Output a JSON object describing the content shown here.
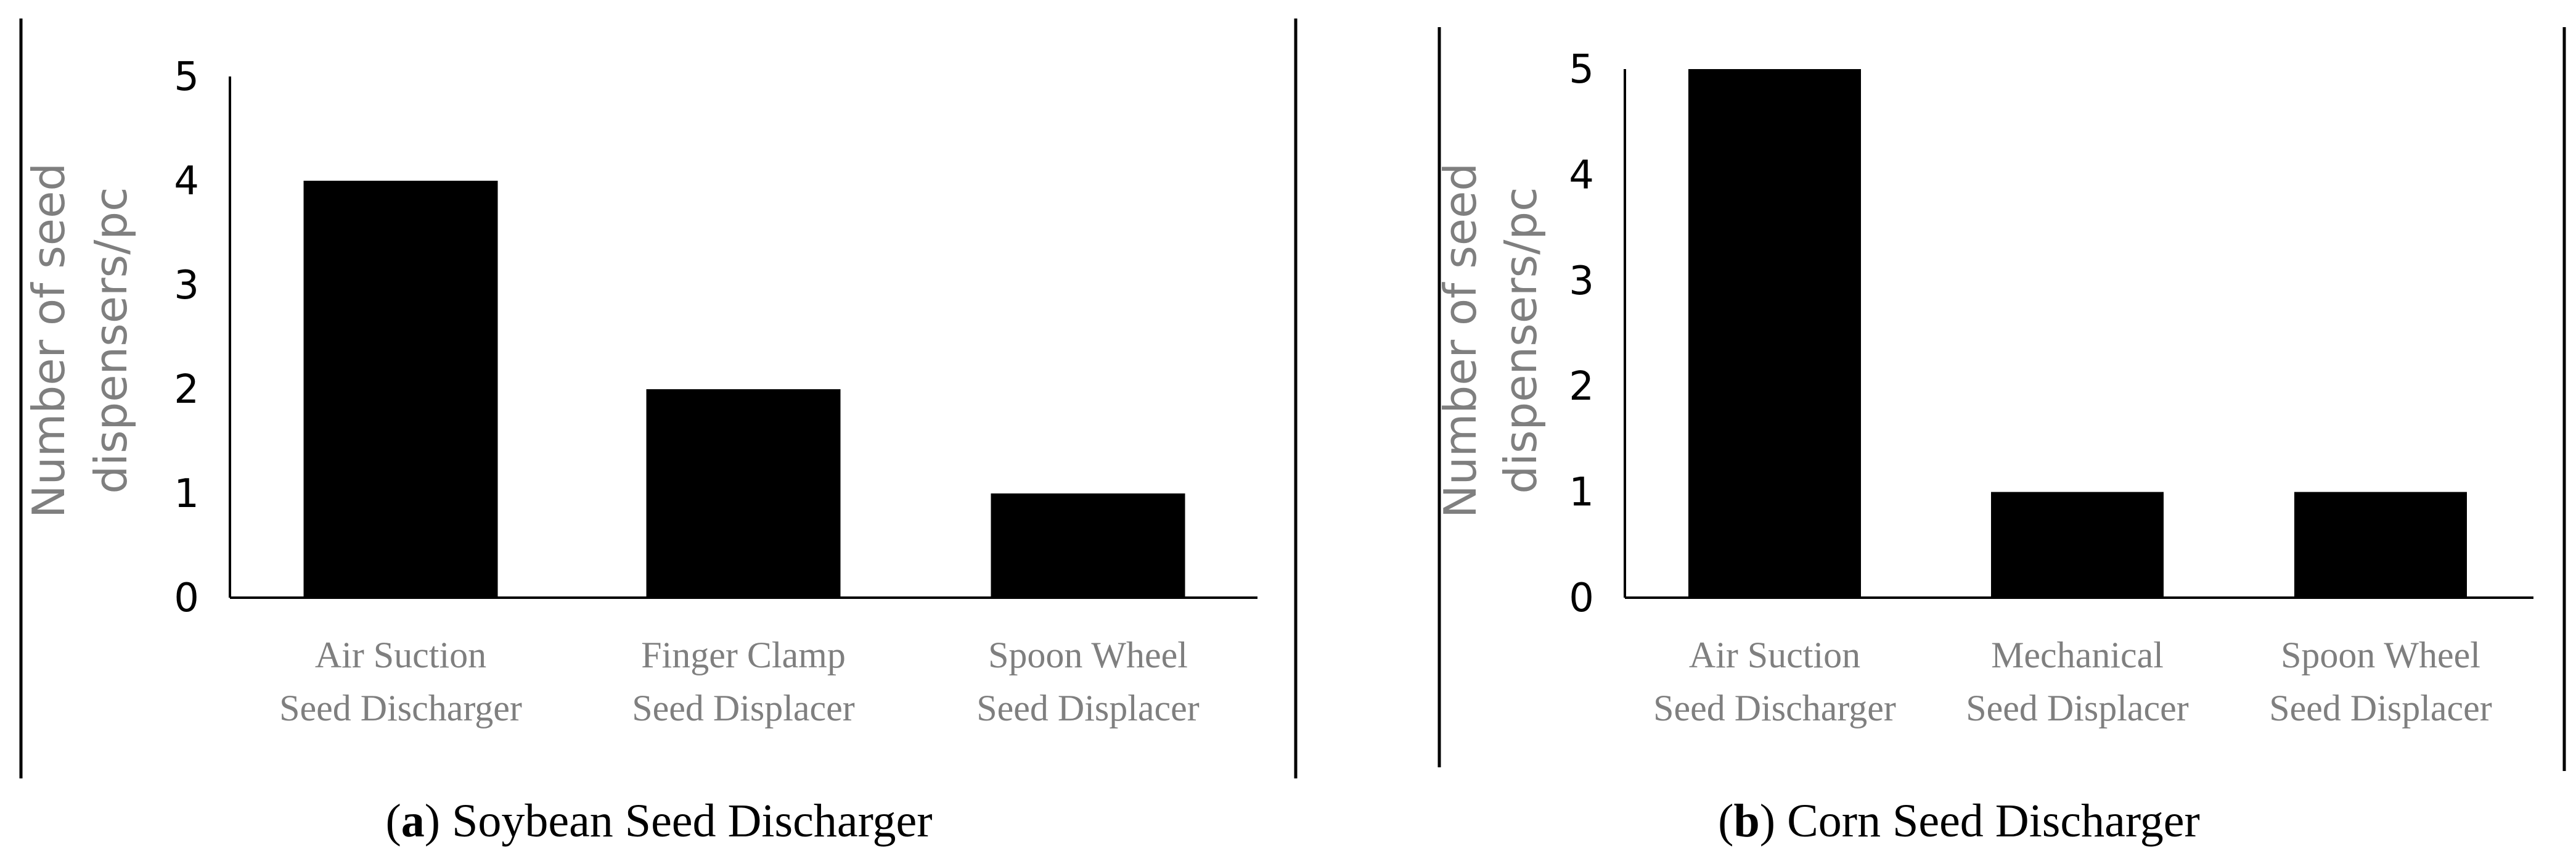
{
  "chart_data": [
    {
      "type": "bar",
      "panel": "a",
      "caption": "Soybean Seed Discharger",
      "ylabel": [
        "Number of seed",
        "dispensers/pc"
      ],
      "ylim": [
        0,
        5
      ],
      "yticks": [
        0,
        1,
        2,
        3,
        4,
        5
      ],
      "categories": [
        [
          "Air Suction",
          "Seed Discharger"
        ],
        [
          "Finger Clamp",
          "Seed Displacer"
        ],
        [
          "Spoon Wheel",
          "Seed Displacer"
        ]
      ],
      "values": [
        4,
        2,
        1
      ],
      "bar_color": "#000000",
      "grid": false
    },
    {
      "type": "bar",
      "panel": "b",
      "caption": "Corn Seed Discharger",
      "ylabel": [
        "Number of seed",
        "dispensers/pc"
      ],
      "ylim": [
        0,
        5
      ],
      "yticks": [
        0,
        1,
        2,
        3,
        4,
        5
      ],
      "categories": [
        [
          "Air Suction",
          "Seed Discharger"
        ],
        [
          "Mechanical",
          "Seed Displacer"
        ],
        [
          "Spoon Wheel",
          "Seed Displacer"
        ]
      ],
      "values": [
        5,
        1,
        1
      ],
      "bar_color": "#000000",
      "grid": false
    }
  ]
}
